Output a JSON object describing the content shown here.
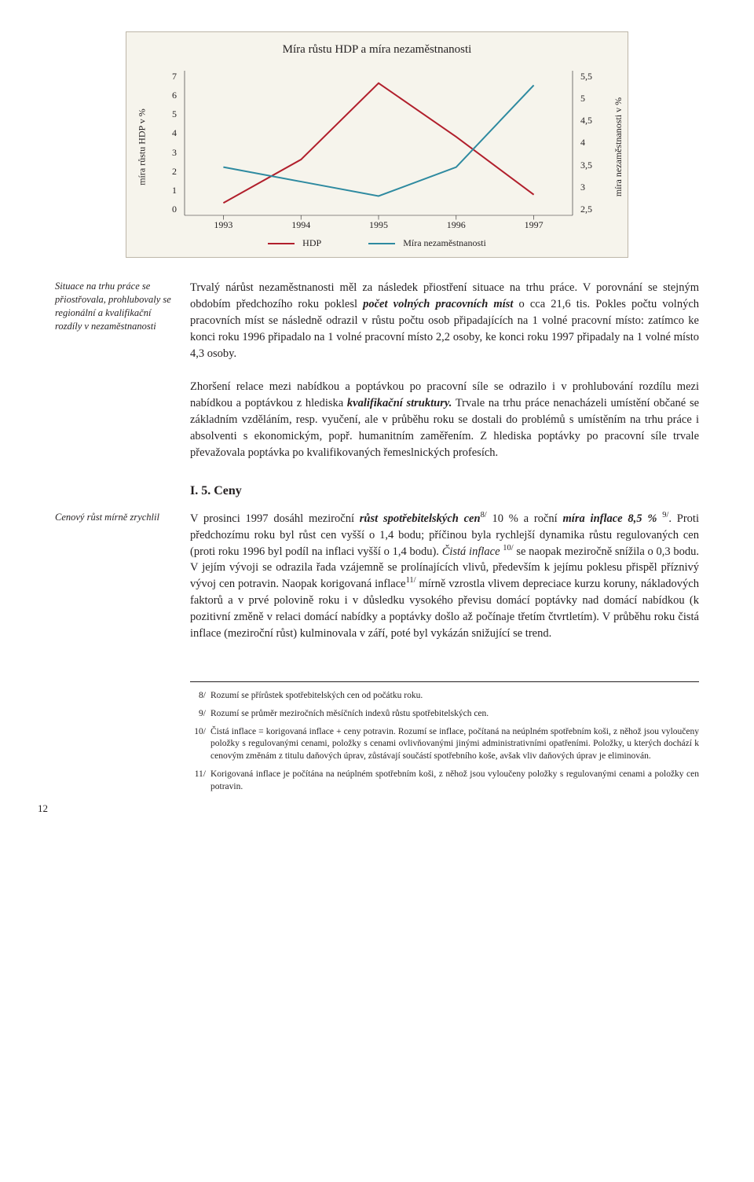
{
  "chart": {
    "title": "Míra růstu HDP a míra nezaměstnanosti",
    "y_left_label": "míra růstu HDP v %",
    "y_right_label": "míra nezaměstnanosti v %",
    "x_categories": [
      "1993",
      "1994",
      "1995",
      "1996",
      "1997"
    ],
    "left_axis": {
      "min": 0,
      "max": 7,
      "ticks": [
        "7",
        "6",
        "5",
        "4",
        "3",
        "2",
        "1",
        "0"
      ]
    },
    "right_axis": {
      "min": 2.5,
      "max": 5.5,
      "ticks": [
        "5,5",
        "5",
        "4,5",
        "4",
        "3,5",
        "3",
        "2,5"
      ]
    },
    "series": [
      {
        "name": "HDP",
        "color": "#b11f2c",
        "axis": "left",
        "values": [
          0.6,
          2.7,
          6.4,
          3.8,
          1.0
        ],
        "width": 2
      },
      {
        "name": "Míra nezaměstnanosti",
        "color": "#2e8aa0",
        "axis": "right",
        "values": [
          3.5,
          3.2,
          2.9,
          3.5,
          5.2
        ],
        "width": 2
      }
    ],
    "legend": [
      {
        "label": "HDP",
        "color": "#b11f2c"
      },
      {
        "label": "Míra nezaměstnanosti",
        "color": "#2e8aa0"
      }
    ],
    "box_bg": "#f6f4ec",
    "box_border": "#bdb6a8",
    "axis_color": "#231f20"
  },
  "sidenotes": {
    "labor": "Situace na trhu práce se přiostřovala, prohlubovaly se regionální a kvalifikační rozdíly v nezaměstnanosti",
    "prices": "Cenový růst mírně zrychlil"
  },
  "body": {
    "p1_a": "Trvalý nárůst nezaměstnanosti měl za následek přiostření situace na trhu práce. V porovnání se stejným obdobím předchozího roku poklesl ",
    "p1_bi": "počet volných pracovních míst",
    "p1_b": " o cca 21,6 tis. Pokles počtu volných pracovních míst se následně odrazil v růstu počtu osob připadajících na 1 volné pracovní místo: zatímco ke konci roku 1996 připadalo na 1 volné pracovní místo 2,2 osoby, ke konci roku 1997 připadaly na 1 volné místo 4,3 osoby.",
    "p2_a": "Zhoršení relace mezi nabídkou a poptávkou po pracovní síle se odrazilo i v prohlubování rozdílu mezi nabídkou a poptávkou z hlediska ",
    "p2_bi": "kvalifikační struktury.",
    "p2_b": " Trvale na trhu práce nenacházeli umístění občané se základním vzděláním, resp. vyučení, ale v průběhu roku se dostali do problémů s umístěním na trhu práce i absolventi s ekonomickým, popř. humanitním zaměřením. Z hlediska poptávky po pracovní síle trvale převažovala poptávka po kvalifikovaných řemeslnických profesích.",
    "heading": "I. 5. Ceny",
    "p3_a": "V prosinci 1997 dosáhl meziroční ",
    "p3_bi1": "růst spotřebitelských cen",
    "p3_sup1": "8/",
    "p3_b": " 10 % a roční ",
    "p3_bi2": "míra inflace 8,5 %",
    "p3_space": " ",
    "p3_sup2": "9/",
    "p3_c": ". Proti předchozímu roku byl růst cen vyšší o 1,4 bodu; příčinou byla rychlejší dynamika růstu regulovaných cen (proti roku 1996 byl podíl na inflaci vyšší o 1,4 bodu). ",
    "p3_it1": "Čistá inflace ",
    "p3_sup3": "10/",
    "p3_d": " se naopak meziročně snížila o 0,3 bodu. V jejím vývoji se odrazila řada vzájemně se prolínajících vlivů, především k jejímu poklesu přispěl příznivý vývoj cen potravin. Naopak korigovaná inflace",
    "p3_sup4": "11/",
    "p3_e": " mírně vzrostla vlivem depreciace kurzu koruny, nákladových faktorů a v prvé polovině roku i v důsledku vysokého převisu domácí poptávky nad domácí nabídkou (k pozitivní změně v relaci domácí nabídky a poptávky došlo až počínaje třetím čtvrtletím). V průběhu roku čistá inflace (meziroční růst) kulminovala v září, poté byl vykázán snižující se trend."
  },
  "footnotes": [
    {
      "num": "8/",
      "text": "Rozumí se přírůstek spotřebitelských cen od počátku roku."
    },
    {
      "num": "9/",
      "text": "Rozumí se průměr meziročních měsíčních indexů růstu spotřebitelských cen."
    },
    {
      "num": "10/",
      "text": "Čistá inflace = korigovaná inflace + ceny potravin. Rozumí se inflace, počítaná na neúplném spotřebním koši, z něhož jsou vyloučeny položky s regulovanými cenami, položky s cenami ovlivňovanými jinými administrativními opatřeními. Položky, u kterých dochází k cenovým změnám z titulu daňových úprav, zůstávají součástí spotřebního koše, avšak vliv daňových úprav je eliminován."
    },
    {
      "num": "11/",
      "text": "Korigovaná inflace je počítána na neúplném spotřebním koši, z něhož jsou vyloučeny položky s regulovanými cenami a položky cen potravin."
    }
  ],
  "page_number": "12"
}
